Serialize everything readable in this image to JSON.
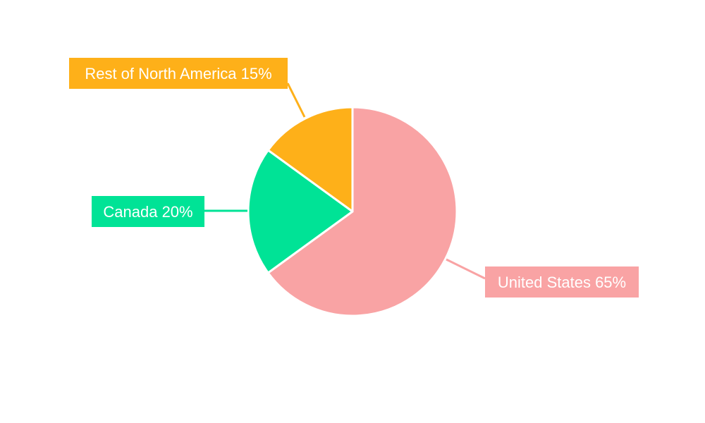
{
  "chart_data": {
    "type": "pie",
    "title": "",
    "start_angle_deg": 0,
    "direction": "clockwise",
    "slices": [
      {
        "label": "United States",
        "value": 65,
        "display": "United States 65%",
        "color": "#F9A3A4"
      },
      {
        "label": "Canada",
        "value": 20,
        "display": "Canada 20%",
        "color": "#00E396"
      },
      {
        "label": "Rest of North America",
        "value": 15,
        "display": "Rest of North America 15%",
        "color": "#FEB019"
      }
    ],
    "slice_border_color": "#FFFFFF",
    "legend": "none",
    "label_style": "outside boxed labels with leader lines"
  }
}
